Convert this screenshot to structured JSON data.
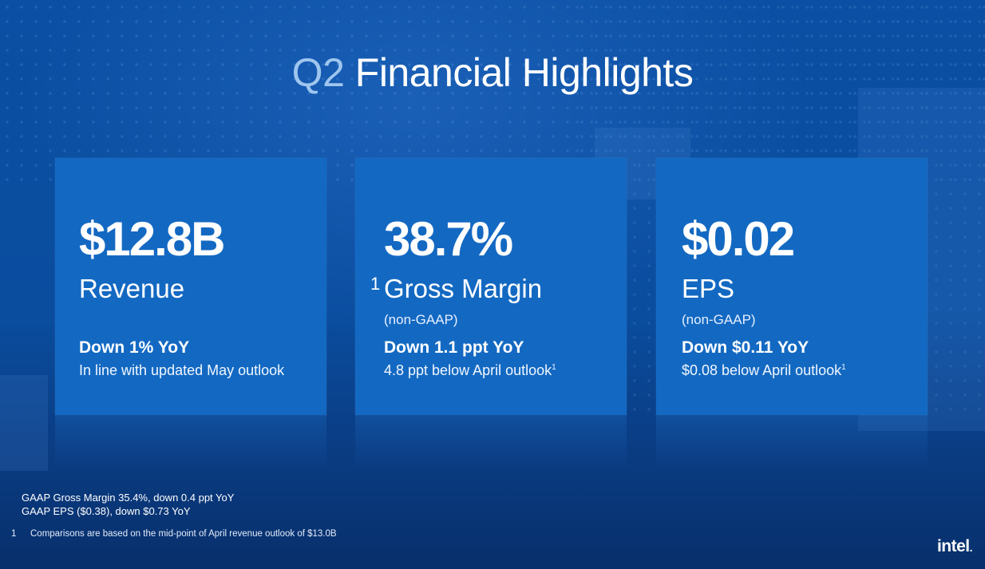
{
  "title": {
    "q2": "Q2",
    "rest": "Financial Highlights"
  },
  "cards": [
    {
      "value": "$12.8B",
      "label": "Revenue",
      "sub": "",
      "note_mark": "",
      "line1": "Down 1% YoY",
      "line2": "In line with updated May outlook",
      "line2_sup": ""
    },
    {
      "value": "38.7%",
      "label": "Gross Margin",
      "sub": "(non-GAAP)",
      "note_mark": "1",
      "line1": "Down 1.1 ppt YoY",
      "line2": "4.8 ppt below April outlook",
      "line2_sup": "1"
    },
    {
      "value": "$0.02",
      "label": "EPS",
      "sub": "(non-GAAP)",
      "note_mark": "",
      "line1": "Down $0.11 YoY",
      "line2": "$0.08 below April outlook",
      "line2_sup": "1"
    }
  ],
  "gaap": {
    "line1": "GAAP Gross Margin 35.4%, down 0.4 ppt YoY",
    "line2": "GAAP EPS ($0.38), down $0.73 YoY"
  },
  "footnote": {
    "num": "1",
    "text": "Comparisons are based on the mid-point of April revenue outlook of $13.0B"
  },
  "logo": {
    "text": "intel",
    "dot": "."
  }
}
